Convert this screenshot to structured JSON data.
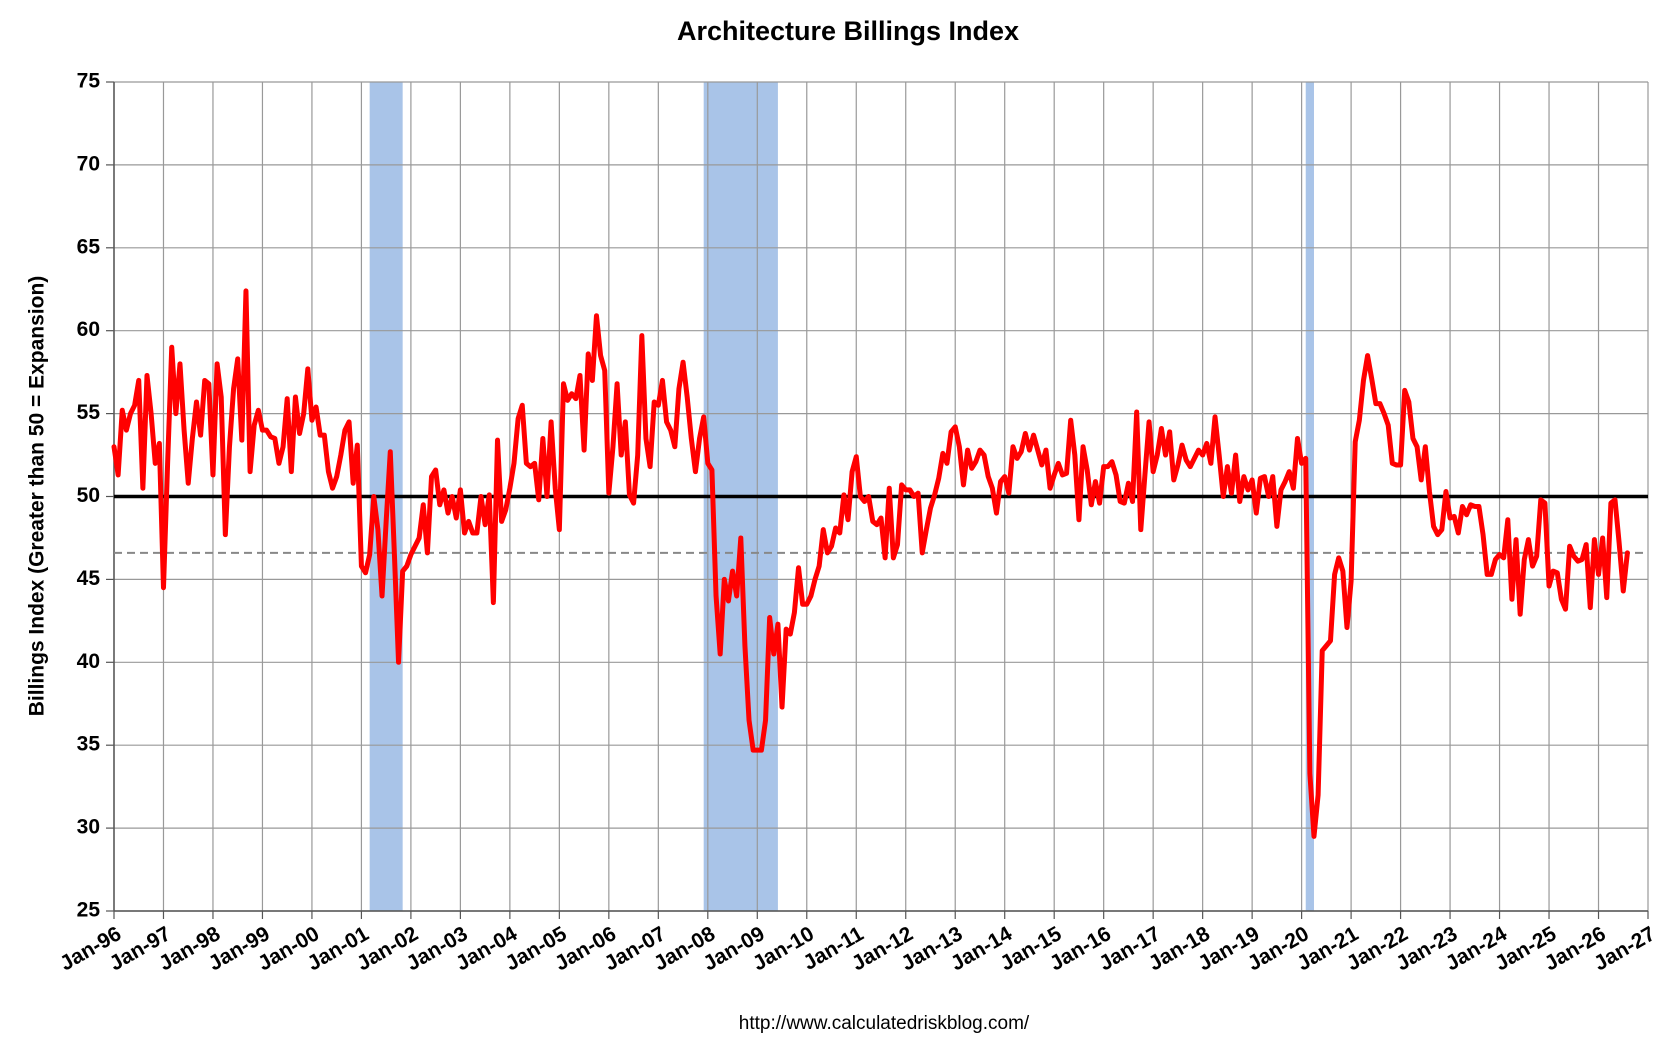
{
  "chart_data": {
    "type": "line",
    "title": "Architecture Billings Index",
    "y_axis_label": "Billings Index (Greater than 50 = Expansion)",
    "source": "http://www.calculatedriskblog.com/",
    "ylim": [
      25,
      75
    ],
    "yticks": [
      25,
      30,
      35,
      40,
      45,
      50,
      55,
      60,
      65,
      70,
      75
    ],
    "xlim": [
      "1996-01",
      "2027-01"
    ],
    "xticks": [
      {
        "value": "1996-01",
        "label": "Jan-96"
      },
      {
        "value": "1997-01",
        "label": "Jan-97"
      },
      {
        "value": "1998-01",
        "label": "Jan-98"
      },
      {
        "value": "1999-01",
        "label": "Jan-99"
      },
      {
        "value": "2000-01",
        "label": "Jan-00"
      },
      {
        "value": "2001-01",
        "label": "Jan-01"
      },
      {
        "value": "2002-01",
        "label": "Jan-02"
      },
      {
        "value": "2003-01",
        "label": "Jan-03"
      },
      {
        "value": "2004-01",
        "label": "Jan-04"
      },
      {
        "value": "2005-01",
        "label": "Jan-05"
      },
      {
        "value": "2006-01",
        "label": "Jan-06"
      },
      {
        "value": "2007-01",
        "label": "Jan-07"
      },
      {
        "value": "2008-01",
        "label": "Jan-08"
      },
      {
        "value": "2009-01",
        "label": "Jan-09"
      },
      {
        "value": "2010-01",
        "label": "Jan-10"
      },
      {
        "value": "2011-01",
        "label": "Jan-11"
      },
      {
        "value": "2012-01",
        "label": "Jan-12"
      },
      {
        "value": "2013-01",
        "label": "Jan-13"
      },
      {
        "value": "2014-01",
        "label": "Jan-14"
      },
      {
        "value": "2015-01",
        "label": "Jan-15"
      },
      {
        "value": "2016-01",
        "label": "Jan-16"
      },
      {
        "value": "2017-01",
        "label": "Jan-17"
      },
      {
        "value": "2018-01",
        "label": "Jan-18"
      },
      {
        "value": "2019-01",
        "label": "Jan-19"
      },
      {
        "value": "2020-01",
        "label": "Jan-20"
      },
      {
        "value": "2021-01",
        "label": "Jan-21"
      },
      {
        "value": "2022-01",
        "label": "Jan-22"
      },
      {
        "value": "2023-01",
        "label": "Jan-23"
      },
      {
        "value": "2024-01",
        "label": "Jan-24"
      },
      {
        "value": "2025-01",
        "label": "Jan-25"
      },
      {
        "value": "2026-01",
        "label": "Jan-26"
      },
      {
        "value": "2027-01",
        "label": "Jan-27"
      }
    ],
    "grid": true,
    "shaded_periods": [
      {
        "start": "2001-03",
        "end": "2001-11"
      },
      {
        "start": "2007-12",
        "end": "2009-06"
      },
      {
        "start": "2020-02",
        "end": "2020-04"
      }
    ],
    "shade_color": "#a9c4e8",
    "reference_lines": [
      {
        "value": 50,
        "color": "#000000",
        "style": "solid"
      },
      {
        "value": 46.6,
        "color": "#888888",
        "style": "dashed"
      }
    ],
    "x": [
      "1996-01",
      "1996-02",
      "1996-03",
      "1996-04",
      "1996-05",
      "1996-06",
      "1996-07",
      "1996-08",
      "1996-09",
      "1996-10",
      "1996-11",
      "1996-12",
      "1997-01",
      "1997-02",
      "1997-03",
      "1997-04",
      "1997-05",
      "1997-06",
      "1997-07",
      "1997-08",
      "1997-09",
      "1997-10",
      "1997-11",
      "1997-12",
      "1998-01",
      "1998-02",
      "1998-03",
      "1998-04",
      "1998-05",
      "1998-06",
      "1998-07",
      "1998-08",
      "1998-09",
      "1998-10",
      "1998-11",
      "1998-12",
      "1999-01",
      "1999-02",
      "1999-03",
      "1999-04",
      "1999-05",
      "1999-06",
      "1999-07",
      "1999-08",
      "1999-09",
      "1999-10",
      "1999-11",
      "1999-12",
      "2000-01",
      "2000-02",
      "2000-03",
      "2000-04",
      "2000-05",
      "2000-06",
      "2000-07",
      "2000-08",
      "2000-09",
      "2000-10",
      "2000-11",
      "2000-12",
      "2001-01",
      "2001-02",
      "2001-03",
      "2001-04",
      "2001-05",
      "2001-06",
      "2001-07",
      "2001-08",
      "2001-09",
      "2001-10",
      "2001-11",
      "2001-12",
      "2002-01",
      "2002-02",
      "2002-03",
      "2002-04",
      "2002-05",
      "2002-06",
      "2002-07",
      "2002-08",
      "2002-09",
      "2002-10",
      "2002-11",
      "2002-12",
      "2003-01",
      "2003-02",
      "2003-03",
      "2003-04",
      "2003-05",
      "2003-06",
      "2003-07",
      "2003-08",
      "2003-09",
      "2003-10",
      "2003-11",
      "2003-12",
      "2004-01",
      "2004-02",
      "2004-03",
      "2004-04",
      "2004-05",
      "2004-06",
      "2004-07",
      "2004-08",
      "2004-09",
      "2004-10",
      "2004-11",
      "2004-12",
      "2005-01",
      "2005-02",
      "2005-03",
      "2005-04",
      "2005-05",
      "2005-06",
      "2005-07",
      "2005-08",
      "2005-09",
      "2005-10",
      "2005-11",
      "2005-12",
      "2006-01",
      "2006-02",
      "2006-03",
      "2006-04",
      "2006-05",
      "2006-06",
      "2006-07",
      "2006-08",
      "2006-09",
      "2006-10",
      "2006-11",
      "2006-12",
      "2007-01",
      "2007-02",
      "2007-03",
      "2007-04",
      "2007-05",
      "2007-06",
      "2007-07",
      "2007-08",
      "2007-09",
      "2007-10",
      "2007-11",
      "2007-12",
      "2008-01",
      "2008-02",
      "2008-03",
      "2008-04",
      "2008-05",
      "2008-06",
      "2008-07",
      "2008-08",
      "2008-09",
      "2008-10",
      "2008-11",
      "2008-12",
      "2009-01",
      "2009-02",
      "2009-03",
      "2009-04",
      "2009-05",
      "2009-06",
      "2009-07",
      "2009-08",
      "2009-09",
      "2009-10",
      "2009-11",
      "2009-12",
      "2010-01",
      "2010-02",
      "2010-03",
      "2010-04",
      "2010-05",
      "2010-06",
      "2010-07",
      "2010-08",
      "2010-09",
      "2010-10",
      "2010-11",
      "2010-12",
      "2011-01",
      "2011-02",
      "2011-03",
      "2011-04",
      "2011-05",
      "2011-06",
      "2011-07",
      "2011-08",
      "2011-09",
      "2011-10",
      "2011-11",
      "2011-12",
      "2012-01",
      "2012-02",
      "2012-03",
      "2012-04",
      "2012-05",
      "2012-06",
      "2012-07",
      "2012-08",
      "2012-09",
      "2012-10",
      "2012-11",
      "2012-12",
      "2013-01",
      "2013-02",
      "2013-03",
      "2013-04",
      "2013-05",
      "2013-06",
      "2013-07",
      "2013-08",
      "2013-09",
      "2013-10",
      "2013-11",
      "2013-12",
      "2014-01",
      "2014-02",
      "2014-03",
      "2014-04",
      "2014-05",
      "2014-06",
      "2014-07",
      "2014-08",
      "2014-09",
      "2014-10",
      "2014-11",
      "2014-12",
      "2015-01",
      "2015-02",
      "2015-03",
      "2015-04",
      "2015-05",
      "2015-06",
      "2015-07",
      "2015-08",
      "2015-09",
      "2015-10",
      "2015-11",
      "2015-12",
      "2016-01",
      "2016-02",
      "2016-03",
      "2016-04",
      "2016-05",
      "2016-06",
      "2016-07",
      "2016-08",
      "2016-09",
      "2016-10",
      "2016-11",
      "2016-12",
      "2017-01",
      "2017-02",
      "2017-03",
      "2017-04",
      "2017-05",
      "2017-06",
      "2017-07",
      "2017-08",
      "2017-09",
      "2017-10",
      "2017-11",
      "2017-12",
      "2018-01",
      "2018-02",
      "2018-03",
      "2018-04",
      "2018-05",
      "2018-06",
      "2018-07",
      "2018-08",
      "2018-09",
      "2018-10",
      "2018-11",
      "2018-12",
      "2019-01",
      "2019-02",
      "2019-03",
      "2019-04",
      "2019-05",
      "2019-06",
      "2019-07",
      "2019-08",
      "2019-09",
      "2019-10",
      "2019-11",
      "2019-12",
      "2020-01",
      "2020-02",
      "2020-03",
      "2020-04",
      "2020-05",
      "2020-06",
      "2020-07",
      "2020-08",
      "2020-09",
      "2020-10",
      "2020-11",
      "2020-12",
      "2021-01",
      "2021-02",
      "2021-03",
      "2021-04",
      "2021-05",
      "2021-06",
      "2021-07",
      "2021-08",
      "2021-09",
      "2021-10",
      "2021-11",
      "2021-12",
      "2022-01",
      "2022-02",
      "2022-03",
      "2022-04",
      "2022-05",
      "2022-06",
      "2022-07",
      "2022-08",
      "2022-09",
      "2022-10",
      "2022-11",
      "2022-12",
      "2023-01",
      "2023-02",
      "2023-03",
      "2023-04",
      "2023-05",
      "2023-06",
      "2023-07",
      "2023-08",
      "2023-09",
      "2023-10",
      "2023-11",
      "2023-12",
      "2024-01",
      "2024-02",
      "2024-03",
      "2024-04",
      "2024-05",
      "2024-06",
      "2024-07",
      "2024-08",
      "2024-09",
      "2024-10",
      "2024-11",
      "2024-12",
      "2025-01",
      "2025-02",
      "2025-03",
      "2025-04",
      "2025-05",
      "2025-06",
      "2025-07",
      "2025-08",
      "2025-09",
      "2025-10",
      "2025-11",
      "2025-12",
      "2026-01",
      "2026-02",
      "2026-03",
      "2026-04",
      "2026-05",
      "2026-06",
      "2026-07",
      "2026-08"
    ],
    "series": [
      {
        "name": "Architecture Billings Index",
        "color": "#ff0000",
        "values": [
          53,
          51.3,
          55.2,
          54,
          55,
          55.5,
          57,
          50.5,
          57.3,
          55,
          52,
          53.2,
          44.5,
          52,
          59,
          55,
          58,
          54,
          50.8,
          53.5,
          55.7,
          53.7,
          57,
          56.8,
          51.3,
          58,
          56,
          47.7,
          53,
          56.5,
          58.3,
          53.4,
          62.4,
          51.5,
          54.3,
          55.2,
          54,
          54,
          53.6,
          53.5,
          52,
          53,
          55.9,
          51.5,
          56,
          53.8,
          55,
          57.7,
          54.6,
          55.4,
          53.7,
          53.7,
          51.5,
          50.5,
          51.2,
          52.5,
          54,
          54.5,
          50.8,
          53.1,
          45.8,
          45.4,
          46.5,
          50,
          48,
          44,
          48.5,
          52.7,
          46.5,
          40,
          45.5,
          45.8,
          46.5,
          47,
          47.5,
          49.5,
          46.6,
          51.2,
          51.6,
          49.5,
          50.4,
          49,
          50,
          48.7,
          50.4,
          47.8,
          48.5,
          47.8,
          47.8,
          50,
          48.3,
          50.1,
          43.6,
          53.4,
          48.5,
          49.2,
          50.5,
          52,
          54.7,
          55.5,
          52,
          51.8,
          52,
          49.8,
          53.5,
          50,
          54.5,
          50.5,
          48,
          56.8,
          55.8,
          56.2,
          55.9,
          57.3,
          52.8,
          58.6,
          57,
          60.9,
          58.5,
          57.6,
          50.2,
          53,
          56.8,
          52.5,
          54.5,
          50.1,
          49.6,
          52.5,
          59.7,
          53.5,
          51.8,
          55.7,
          55.5,
          57,
          54.5,
          54,
          53,
          56.5,
          58.1,
          56,
          53.5,
          51.5,
          53.5,
          54.8,
          52,
          51.6,
          44,
          40.5,
          45,
          43.7,
          45.5,
          44,
          47.5,
          41,
          36.5,
          34.7,
          34.7,
          34.7,
          36.5,
          42.7,
          40.5,
          42.3,
          37.3,
          42,
          41.7,
          43,
          45.7,
          43.5,
          43.5,
          44,
          45,
          45.8,
          48,
          46.6,
          47,
          48.1,
          47.8,
          50.1,
          48.6,
          51.5,
          52.4,
          50,
          49.7,
          50,
          48.5,
          48.3,
          48.7,
          46.3,
          50.5,
          46.3,
          47.1,
          50.7,
          50.4,
          50.4,
          50,
          50.2,
          46.6,
          48,
          49.3,
          50.1,
          51.1,
          52.6,
          52,
          53.9,
          54.2,
          53,
          50.7,
          52.8,
          51.7,
          52.1,
          52.8,
          52.5,
          51.2,
          50.5,
          49,
          50.9,
          51.2,
          50.2,
          53,
          52.3,
          52.7,
          53.8,
          52.8,
          53.7,
          52.8,
          51.9,
          52.8,
          50.5,
          51.3,
          52,
          51.3,
          51.4,
          54.6,
          52.5,
          48.6,
          53,
          51.6,
          49.5,
          50.9,
          49.6,
          51.8,
          51.8,
          52.1,
          51.3,
          49.7,
          49.6,
          50.8,
          49.7,
          55.1,
          48,
          51.3,
          54.5,
          51.5,
          52.5,
          54.1,
          52.5,
          53.9,
          51,
          51.9,
          53.1,
          52.2,
          51.8,
          52.3,
          52.8,
          52.5,
          53.2,
          52,
          54.8,
          52.5,
          50,
          51.8,
          50.2,
          52.5,
          49.7,
          51.2,
          50.4,
          51,
          49,
          51.1,
          51.2,
          50,
          51.2,
          48.2,
          50.4,
          50.9,
          51.5,
          50.5,
          53.5,
          52,
          52.3,
          33.3,
          29.5,
          32,
          40.7,
          41,
          41.3,
          45.3,
          46.3,
          45.5,
          42.1,
          44.9,
          53.3,
          54.6,
          57,
          58.5,
          57.1,
          55.6,
          55.6,
          55,
          54.3,
          52,
          51.9,
          51.9,
          56.4,
          55.7,
          53.5,
          53,
          51,
          53,
          50.3,
          48.2,
          47.7,
          48,
          50.3,
          48.7,
          48.8,
          47.8,
          49.4,
          48.9,
          49.5,
          49.4,
          49.4,
          47.7,
          45.3,
          45.3,
          46.2,
          46.5,
          46.3,
          48.6,
          43.8,
          47.4,
          42.9,
          46.2,
          47.4,
          45.8,
          46.4,
          49.8,
          49.6,
          44.6,
          45.5,
          45.4,
          43.8,
          43.2,
          47,
          46.4,
          46.1,
          46.2,
          47.1,
          43.3,
          47.4,
          45.3,
          47.5,
          43.9,
          49.6,
          49.8,
          47.2,
          44.3,
          46.6
        ]
      }
    ]
  }
}
